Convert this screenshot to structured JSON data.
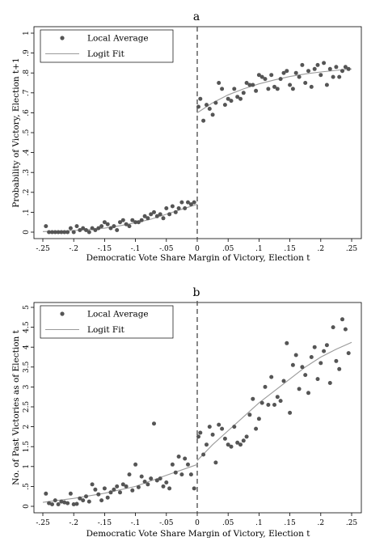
{
  "colors": {
    "points": "#555555",
    "fit": "#9a9a9a",
    "cutoff": "#555555",
    "axis": "#000000"
  },
  "chart_data": [
    {
      "type": "scatter",
      "title": "a",
      "xlabel": "Democratic Vote Share Margin of Victory, Election t",
      "ylabel": "Probability of Victory, Election t+1",
      "xlim": [
        -0.25,
        0.25
      ],
      "ylim": [
        0,
        1
      ],
      "xticks": [
        -0.25,
        -0.2,
        -0.15,
        -0.1,
        -0.05,
        0,
        0.05,
        0.1,
        0.15,
        0.2,
        0.25
      ],
      "xtick_labels": [
        "-.25",
        "-.2",
        "-.15",
        "-.1",
        "-.05",
        "0",
        ".05",
        ".1",
        ".15",
        ".2",
        ".25"
      ],
      "yticks": [
        0,
        0.1,
        0.2,
        0.3,
        0.4,
        0.5,
        0.6,
        0.7,
        0.8,
        0.9,
        1
      ],
      "ytick_labels": [
        "0",
        ".1",
        ".2",
        ".3",
        ".4",
        ".5",
        ".6",
        ".7",
        ".8",
        ".9",
        "1"
      ],
      "grid": false,
      "legend_position": "top-left",
      "cutoff_line_x": 0,
      "series": [
        {
          "name": "Local Average",
          "kind": "points",
          "x": [
            -0.245,
            -0.24,
            -0.235,
            -0.23,
            -0.225,
            -0.22,
            -0.215,
            -0.21,
            -0.205,
            -0.2,
            -0.195,
            -0.19,
            -0.185,
            -0.18,
            -0.175,
            -0.17,
            -0.165,
            -0.16,
            -0.155,
            -0.15,
            -0.145,
            -0.14,
            -0.135,
            -0.13,
            -0.125,
            -0.12,
            -0.115,
            -0.11,
            -0.105,
            -0.1,
            -0.095,
            -0.09,
            -0.085,
            -0.08,
            -0.075,
            -0.07,
            -0.065,
            -0.06,
            -0.055,
            -0.05,
            -0.045,
            -0.04,
            -0.035,
            -0.03,
            -0.025,
            -0.02,
            -0.015,
            -0.01,
            -0.005,
            0.002,
            0.005,
            0.01,
            0.015,
            0.02,
            0.025,
            0.03,
            0.035,
            0.04,
            0.045,
            0.05,
            0.055,
            0.06,
            0.065,
            0.07,
            0.075,
            0.08,
            0.085,
            0.09,
            0.095,
            0.1,
            0.105,
            0.11,
            0.115,
            0.12,
            0.125,
            0.13,
            0.135,
            0.14,
            0.145,
            0.15,
            0.155,
            0.16,
            0.165,
            0.17,
            0.175,
            0.18,
            0.185,
            0.19,
            0.195,
            0.2,
            0.205,
            0.21,
            0.215,
            0.22,
            0.225,
            0.23,
            0.235,
            0.24,
            0.245
          ],
          "y": [
            0.03,
            0.0,
            0.0,
            0.0,
            0.0,
            0.0,
            0.0,
            0.0,
            0.02,
            0.0,
            0.03,
            0.01,
            0.02,
            0.01,
            0.0,
            0.02,
            0.01,
            0.02,
            0.03,
            0.05,
            0.04,
            0.02,
            0.03,
            0.01,
            0.05,
            0.06,
            0.04,
            0.03,
            0.06,
            0.05,
            0.05,
            0.06,
            0.08,
            0.07,
            0.09,
            0.1,
            0.08,
            0.09,
            0.07,
            0.12,
            0.09,
            0.13,
            0.1,
            0.12,
            0.15,
            0.12,
            0.15,
            0.14,
            0.15,
            0.63,
            0.67,
            0.56,
            0.64,
            0.62,
            0.59,
            0.65,
            0.75,
            0.72,
            0.64,
            0.67,
            0.66,
            0.72,
            0.68,
            0.67,
            0.7,
            0.75,
            0.74,
            0.74,
            0.71,
            0.79,
            0.78,
            0.77,
            0.72,
            0.79,
            0.73,
            0.72,
            0.77,
            0.8,
            0.81,
            0.74,
            0.72,
            0.8,
            0.78,
            0.84,
            0.75,
            0.81,
            0.73,
            0.82,
            0.84,
            0.79,
            0.85,
            0.74,
            0.82,
            0.78,
            0.83,
            0.78,
            0.81,
            0.83,
            0.82
          ],
          "color": "#555555"
        },
        {
          "name": "Logit Fit",
          "kind": "line",
          "segments": [
            {
              "x": [
                -0.25,
                -0.225,
                -0.2,
                -0.175,
                -0.15,
                -0.125,
                -0.1,
                -0.075,
                -0.05,
                -0.025,
                0
              ],
              "y": [
                0.003,
                0.005,
                0.008,
                0.013,
                0.02,
                0.032,
                0.047,
                0.065,
                0.09,
                0.115,
                0.14
              ]
            },
            {
              "x": [
                0,
                0.025,
                0.05,
                0.075,
                0.1,
                0.125,
                0.15,
                0.175,
                0.2,
                0.225,
                0.25
              ],
              "y": [
                0.6,
                0.65,
                0.69,
                0.72,
                0.745,
                0.765,
                0.782,
                0.795,
                0.805,
                0.813,
                0.82
              ]
            }
          ],
          "color": "#9a9a9a"
        }
      ]
    },
    {
      "type": "scatter",
      "title": "b",
      "xlabel": "Democratic Vote Share Margin of Victory, Election t",
      "ylabel": "No. of Past Victories as of Election t",
      "xlim": [
        -0.25,
        0.25
      ],
      "ylim": [
        0,
        5
      ],
      "xticks": [
        -0.25,
        -0.2,
        -0.15,
        -0.1,
        -0.05,
        0,
        0.05,
        0.1,
        0.15,
        0.2,
        0.25
      ],
      "xtick_labels": [
        "-.25",
        "-.2",
        "-.15",
        "-.1",
        "-.05",
        "0",
        ".05",
        ".1",
        ".15",
        ".2",
        ".25"
      ],
      "yticks": [
        0,
        0.5,
        1,
        1.5,
        2,
        2.5,
        3,
        3.5,
        4,
        4.5,
        5
      ],
      "ytick_labels": [
        "0",
        ".5",
        "1",
        "1.5",
        "2",
        "2.5",
        "3",
        "3.5",
        "4",
        "4.5",
        "5"
      ],
      "grid": false,
      "legend_position": "top-left",
      "cutoff_line_x": 0,
      "series": [
        {
          "name": "Local Average",
          "kind": "points",
          "x": [
            -0.245,
            -0.24,
            -0.235,
            -0.23,
            -0.225,
            -0.22,
            -0.215,
            -0.21,
            -0.205,
            -0.2,
            -0.195,
            -0.19,
            -0.185,
            -0.18,
            -0.175,
            -0.17,
            -0.165,
            -0.16,
            -0.155,
            -0.15,
            -0.145,
            -0.14,
            -0.135,
            -0.13,
            -0.125,
            -0.12,
            -0.115,
            -0.11,
            -0.105,
            -0.1,
            -0.095,
            -0.09,
            -0.085,
            -0.08,
            -0.075,
            -0.07,
            -0.065,
            -0.06,
            -0.055,
            -0.05,
            -0.045,
            -0.04,
            -0.035,
            -0.03,
            -0.025,
            -0.02,
            -0.015,
            -0.01,
            -0.005,
            0.002,
            0.005,
            0.01,
            0.015,
            0.02,
            0.025,
            0.03,
            0.035,
            0.04,
            0.045,
            0.05,
            0.055,
            0.06,
            0.065,
            0.07,
            0.075,
            0.08,
            0.085,
            0.09,
            0.095,
            0.1,
            0.105,
            0.11,
            0.115,
            0.12,
            0.125,
            0.13,
            0.135,
            0.14,
            0.145,
            0.15,
            0.155,
            0.16,
            0.165,
            0.17,
            0.175,
            0.18,
            0.185,
            0.19,
            0.195,
            0.2,
            0.205,
            0.21,
            0.215,
            0.22,
            0.225,
            0.23,
            0.235,
            0.24,
            0.245
          ],
          "y": [
            0.32,
            0.08,
            0.05,
            0.15,
            0.05,
            0.12,
            0.1,
            0.08,
            0.32,
            0.05,
            0.06,
            0.2,
            0.15,
            0.25,
            0.12,
            0.55,
            0.42,
            0.3,
            0.15,
            0.45,
            0.22,
            0.35,
            0.42,
            0.5,
            0.35,
            0.55,
            0.5,
            0.8,
            0.4,
            1.05,
            0.48,
            0.75,
            0.62,
            0.55,
            0.7,
            2.08,
            0.65,
            0.7,
            0.5,
            0.6,
            0.45,
            1.05,
            0.85,
            1.25,
            0.8,
            1.2,
            1.05,
            0.8,
            0.45,
            1.75,
            1.85,
            1.3,
            1.55,
            2.0,
            1.8,
            1.1,
            2.05,
            1.95,
            1.7,
            1.55,
            1.5,
            2.0,
            1.6,
            1.55,
            1.65,
            1.75,
            2.3,
            2.7,
            1.95,
            2.2,
            2.6,
            3.0,
            2.55,
            3.25,
            2.55,
            2.75,
            2.65,
            3.15,
            4.1,
            2.35,
            3.55,
            3.8,
            2.95,
            3.5,
            3.3,
            2.85,
            3.75,
            4.0,
            3.2,
            3.6,
            3.9,
            4.05,
            3.1,
            4.5,
            3.65,
            3.45,
            4.7,
            4.45,
            3.85
          ],
          "color": "#555555"
        },
        {
          "name": "Logit Fit",
          "kind": "line",
          "segments": [
            {
              "x": [
                -0.25,
                -0.2,
                -0.15,
                -0.1,
                -0.05,
                0
              ],
              "y": [
                0.1,
                0.2,
                0.33,
                0.5,
                0.78,
                1.05
              ]
            },
            {
              "x": [
                0,
                0.025,
                0.05,
                0.075,
                0.1,
                0.125,
                0.15,
                0.175,
                0.2,
                0.225,
                0.25
              ],
              "y": [
                1.15,
                1.55,
                1.9,
                2.25,
                2.6,
                2.9,
                3.2,
                3.5,
                3.75,
                3.95,
                4.12
              ]
            }
          ],
          "color": "#9a9a9a"
        }
      ]
    }
  ]
}
